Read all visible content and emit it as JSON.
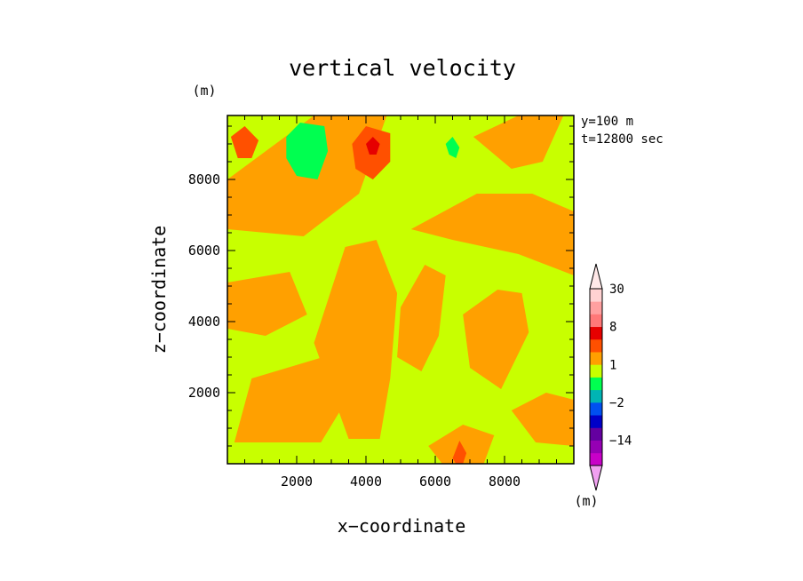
{
  "chart_data": {
    "type": "heatmap",
    "title": "vertical velocity",
    "xlabel": "x−coordinate",
    "ylabel": "z−coordinate",
    "y_unit": "(m)",
    "colorbar_unit": "(m)",
    "annotations": [
      "y=100  m",
      "t=12800 sec"
    ],
    "xlim": [
      0,
      10000
    ],
    "ylim": [
      0,
      9800
    ],
    "x_ticks": [
      2000,
      4000,
      6000,
      8000
    ],
    "x_tick_labels": [
      "2000",
      "4000",
      "6000",
      "8000"
    ],
    "y_ticks": [
      2000,
      4000,
      6000,
      8000
    ],
    "y_tick_labels": [
      "2000",
      "4000",
      "6000",
      "8000"
    ],
    "colorbar": {
      "levels": [
        -30,
        -20,
        -14,
        -8,
        -4,
        -2,
        -1,
        0,
        1,
        2,
        4,
        8,
        14,
        20,
        30
      ],
      "labels": [
        {
          "value": 30,
          "text": "30"
        },
        {
          "value": 8,
          "text": "8"
        },
        {
          "value": 1,
          "text": "1"
        },
        {
          "value": -2,
          "text": "−2"
        },
        {
          "value": -14,
          "text": "−14"
        }
      ],
      "colors": [
        "#c800c8",
        "#9600b4",
        "#6400a0",
        "#0000c8",
        "#0050f0",
        "#00b4b4",
        "#00ff50",
        "#c8ff00",
        "#ffa000",
        "#ff5000",
        "#e60000",
        "#ff7878",
        "#ffa0a0",
        "#ffd2d2"
      ],
      "triangles": [
        "#f0a0f0",
        "#ffe8e8"
      ]
    },
    "background_class": "0 to 1",
    "regions": [
      {
        "class": "1 to 2",
        "points": [
          [
            0,
            8000
          ],
          [
            2500,
            9800
          ],
          [
            4600,
            9800
          ],
          [
            3800,
            7600
          ],
          [
            2200,
            6400
          ],
          [
            0,
            6600
          ]
        ]
      },
      {
        "class": "1 to 2",
        "points": [
          [
            0,
            5100
          ],
          [
            1800,
            5400
          ],
          [
            2300,
            4200
          ],
          [
            1100,
            3600
          ],
          [
            0,
            3800
          ]
        ]
      },
      {
        "class": "1 to 2",
        "points": [
          [
            700,
            2400
          ],
          [
            3100,
            3100
          ],
          [
            3700,
            2200
          ],
          [
            2700,
            600
          ],
          [
            200,
            600
          ]
        ]
      },
      {
        "class": "1 to 2",
        "points": [
          [
            2500,
            3400
          ],
          [
            3400,
            6100
          ],
          [
            4300,
            6300
          ],
          [
            4900,
            4800
          ],
          [
            4700,
            2400
          ],
          [
            4400,
            700
          ],
          [
            3500,
            700
          ]
        ]
      },
      {
        "class": "1 to 2",
        "points": [
          [
            5000,
            4400
          ],
          [
            5700,
            5600
          ],
          [
            6300,
            5300
          ],
          [
            6100,
            3600
          ],
          [
            5600,
            2600
          ],
          [
            4900,
            3000
          ]
        ]
      },
      {
        "class": "1 to 2",
        "points": [
          [
            6800,
            4200
          ],
          [
            7800,
            4900
          ],
          [
            8500,
            4800
          ],
          [
            8700,
            3700
          ],
          [
            7900,
            2100
          ],
          [
            7000,
            2700
          ]
        ]
      },
      {
        "class": "1 to 2",
        "points": [
          [
            5300,
            6600
          ],
          [
            7200,
            7600
          ],
          [
            8800,
            7600
          ],
          [
            10000,
            7100
          ],
          [
            10000,
            5300
          ],
          [
            8400,
            5900
          ],
          [
            6500,
            6300
          ]
        ]
      },
      {
        "class": "1 to 2",
        "points": [
          [
            7100,
            9200
          ],
          [
            8400,
            9800
          ],
          [
            9700,
            9800
          ],
          [
            9100,
            8500
          ],
          [
            8200,
            8300
          ]
        ]
      },
      {
        "class": "1 to 2",
        "points": [
          [
            5800,
            500
          ],
          [
            6800,
            1100
          ],
          [
            7700,
            800
          ],
          [
            7400,
            0
          ],
          [
            6200,
            0
          ]
        ]
      },
      {
        "class": "1 to 2",
        "points": [
          [
            8200,
            1500
          ],
          [
            9200,
            2000
          ],
          [
            10000,
            1800
          ],
          [
            10000,
            500
          ],
          [
            8900,
            600
          ]
        ]
      },
      {
        "class": "2 to 4",
        "points": [
          [
            100,
            9200
          ],
          [
            500,
            9500
          ],
          [
            900,
            9100
          ],
          [
            700,
            8600
          ],
          [
            300,
            8600
          ]
        ]
      },
      {
        "class": "2 to 4",
        "points": [
          [
            3600,
            9000
          ],
          [
            4000,
            9500
          ],
          [
            4700,
            9300
          ],
          [
            4700,
            8500
          ],
          [
            4200,
            8000
          ],
          [
            3700,
            8300
          ]
        ]
      },
      {
        "class": "2 to 4",
        "points": [
          [
            6500,
            150
          ],
          [
            6700,
            650
          ],
          [
            6900,
            300
          ],
          [
            6800,
            0
          ],
          [
            6600,
            0
          ]
        ]
      },
      {
        "class": "4 to 8",
        "points": [
          [
            4000,
            9000
          ],
          [
            4200,
            9200
          ],
          [
            4400,
            9000
          ],
          [
            4300,
            8700
          ],
          [
            4100,
            8700
          ]
        ]
      },
      {
        "class": "-1 to 0",
        "points": [
          [
            1700,
            9200
          ],
          [
            2100,
            9600
          ],
          [
            2800,
            9500
          ],
          [
            2900,
            8800
          ],
          [
            2600,
            8000
          ],
          [
            2000,
            8100
          ],
          [
            1700,
            8600
          ]
        ]
      },
      {
        "class": "-1 to 0",
        "points": [
          [
            6300,
            9000
          ],
          [
            6500,
            9200
          ],
          [
            6700,
            8900
          ],
          [
            6600,
            8600
          ],
          [
            6400,
            8700
          ]
        ]
      }
    ]
  }
}
